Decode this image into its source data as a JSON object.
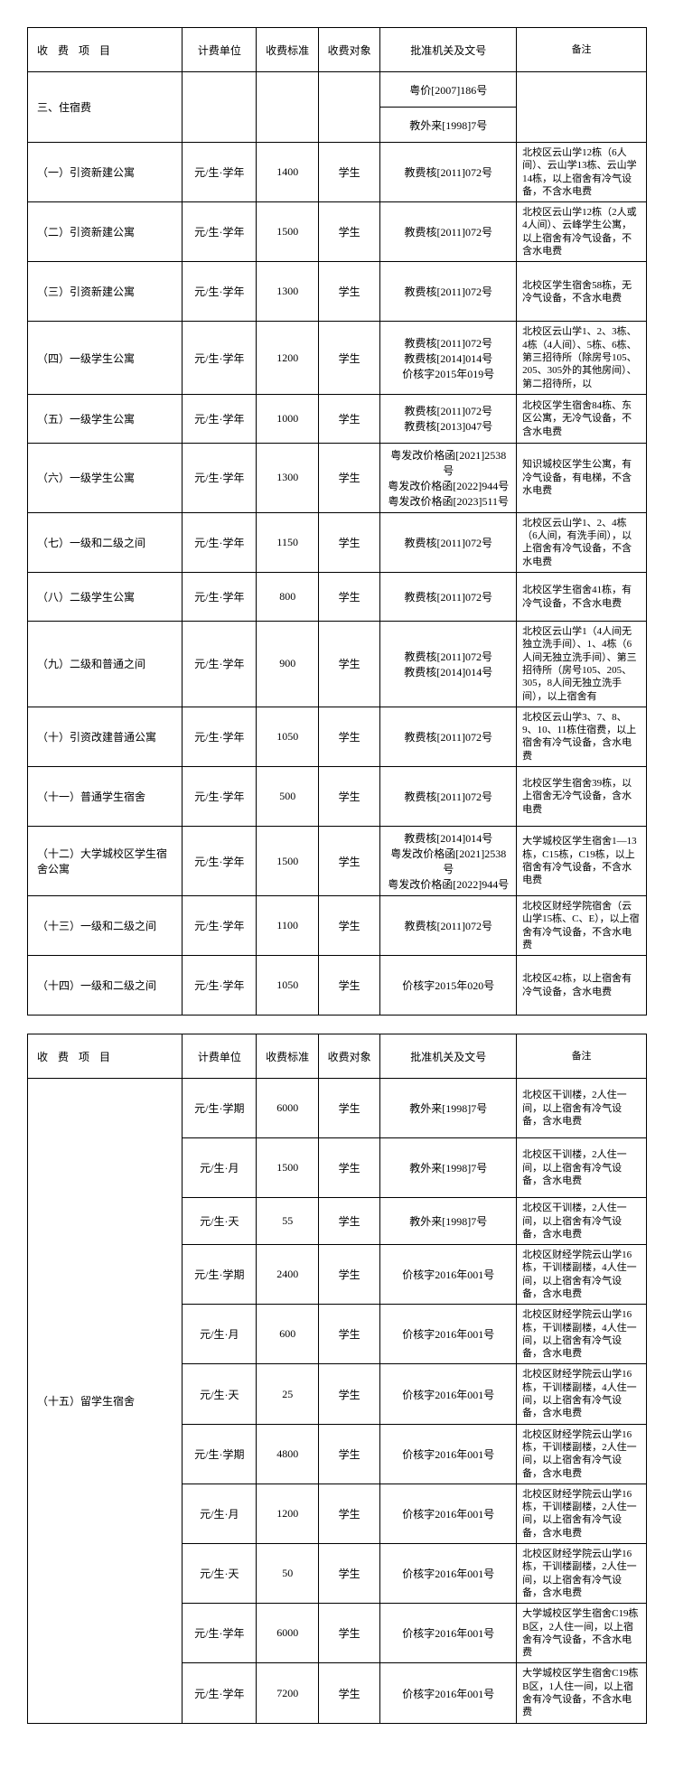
{
  "columns": {
    "fee_item": "收 费 项 目",
    "unit": "计费单位",
    "standard": "收费标准",
    "target": "收费对象",
    "approval": "批准机关及文号",
    "remark": "备注"
  },
  "section_title": "三、住宿费",
  "section_approvals": [
    "粤价[2007]186号",
    "教外来[1998]7号"
  ],
  "rows1": [
    {
      "item": "（一）引资新建公寓",
      "unit": "元/生·学年",
      "std": "1400",
      "target": "学生",
      "approval": "教费核[2011]072号",
      "remark": "北校区云山学12栋（6人间）、云山学13栋、云山学14栋，以上宿舍有冷气设备，不含水电费",
      "h": "h-tall"
    },
    {
      "item": "（二）引资新建公寓",
      "unit": "元/生·学年",
      "std": "1500",
      "target": "学生",
      "approval": "教费核[2011]072号",
      "remark": "北校区云山学12栋（2人或4人间）、云峰学生公寓，以上宿舍有冷气设备，不含水电费",
      "h": "h-tall"
    },
    {
      "item": "（三）引资新建公寓",
      "unit": "元/生·学年",
      "std": "1300",
      "target": "学生",
      "approval": "教费核[2011]072号",
      "remark": "北校区学生宿舍58栋，无冷气设备，不含水电费",
      "h": "h-tall"
    },
    {
      "item": "（四）一级学生公寓",
      "unit": "元/生·学年",
      "std": "1200",
      "target": "学生",
      "approval": "教费核[2011]072号\n教费核[2014]014号\n价核字2015年019号",
      "remark": "北校区云山学1、2、3栋、4栋（4人间）、5栋、6栋、第三招待所（除房号105、205、305外的其他房间）、第二招待所，以",
      "h": "h-tall"
    },
    {
      "item": "（五）一级学生公寓",
      "unit": "元/生·学年",
      "std": "1000",
      "target": "学生",
      "approval": "教费核[2011]072号\n教费核[2013]047号",
      "remark": "北校区学生宿舍84栋、东区公寓，无冷气设备，不含水电费",
      "h": "h-mid"
    },
    {
      "item": "（六）一级学生公寓",
      "unit": "元/生·学年",
      "std": "1300",
      "target": "学生",
      "approval": "粤发改价格函[2021]2538号\n粤发改价格函[2022]944号\n粤发改价格函[2023]511号",
      "remark": "知识城校区学生公寓，有冷气设备，有电梯，不含水电费",
      "h": "h-mid"
    },
    {
      "item": "（七）一级和二级之间",
      "unit": "元/生·学年",
      "std": "1150",
      "target": "学生",
      "approval": "教费核[2011]072号",
      "remark": "北校区云山学1、2、4栋（6人间，有洗手间），以上宿舍有冷气设备，不含水电费",
      "h": "h-mid"
    },
    {
      "item": "（八）二级学生公寓",
      "unit": "元/生·学年",
      "std": "800",
      "target": "学生",
      "approval": "教费核[2011]072号",
      "remark": "北校区学生宿舍41栋，有冷气设备，不含水电费",
      "h": "h-mid"
    },
    {
      "item": "（九）二级和普通之间",
      "unit": "元/生·学年",
      "std": "900",
      "target": "学生",
      "approval": "教费核[2011]072号\n教费核[2014]014号",
      "remark": "北校区云山学1（4人间无独立洗手间）、1、4栋（6人间无独立洗手间）、第三招待所（房号105、205、305，8人间无独立洗手间），以上宿舍有",
      "h": "h-tall"
    },
    {
      "item": "（十）引资改建普通公寓",
      "unit": "元/生·学年",
      "std": "1050",
      "target": "学生",
      "approval": "教费核[2011]072号",
      "remark": "北校区云山学3、7、8、9、10、11栋住宿费，以上宿舍有冷气设备，含水电费",
      "h": "h-tall"
    },
    {
      "item": "（十一）普通学生宿舍",
      "unit": "元/生·学年",
      "std": "500",
      "target": "学生",
      "approval": "教费核[2011]072号",
      "remark": "北校区学生宿舍39栋，以上宿舍无冷气设备，含水电费",
      "h": "h-tall"
    },
    {
      "item": "（十二）大学城校区学生宿舍公寓",
      "unit": "元/生·学年",
      "std": "1500",
      "target": "学生",
      "approval": "教费核[2014]014号\n粤发改价格函[2021]2538号\n粤发改价格函[2022]944号",
      "remark": "大学城校区学生宿舍1—13栋，C15栋，C19栋，以上宿舍有冷气设备，不含水电费",
      "h": "h-tall"
    },
    {
      "item": "（十三）一级和二级之间",
      "unit": "元/生·学年",
      "std": "1100",
      "target": "学生",
      "approval": "教费核[2011]072号",
      "remark": "北校区财经学院宿舍（云山学15栋、C、E），以上宿舍有冷气设备，不含水电费",
      "h": "h-tall"
    },
    {
      "item": "（十四）一级和二级之间",
      "unit": "元/生·学年",
      "std": "1050",
      "target": "学生",
      "approval": "价核字2015年020号",
      "remark": "北校区42栋，以上宿舍有冷气设备，含水电费",
      "h": "h-tall"
    }
  ],
  "group15_label": "（十五）留学生宿舍",
  "rows2": [
    {
      "unit": "元/生·学期",
      "std": "6000",
      "target": "学生",
      "approval": "教外来[1998]7号",
      "remark": "北校区干训楼，2人住一间，以上宿舍有冷气设备，含水电费",
      "h": "h-tall"
    },
    {
      "unit": "元/生·月",
      "std": "1500",
      "target": "学生",
      "approval": "教外来[1998]7号",
      "remark": "北校区干训楼，2人住一间，以上宿舍有冷气设备，含水电费",
      "h": "h-tall"
    },
    {
      "unit": "元/生·天",
      "std": "55",
      "target": "学生",
      "approval": "教外来[1998]7号",
      "remark": "北校区干训楼，2人住一间，以上宿舍有冷气设备，含水电费",
      "h": "h-short"
    },
    {
      "unit": "元/生·学期",
      "std": "2400",
      "target": "学生",
      "approval": "价核字2016年001号",
      "remark": "北校区财经学院云山学16栋，干训楼副楼，4人住一间，以上宿舍有冷气设备，含水电费",
      "h": "h-mid"
    },
    {
      "unit": "元/生·月",
      "std": "600",
      "target": "学生",
      "approval": "价核字2016年001号",
      "remark": "北校区财经学院云山学16栋，干训楼副楼，4人住一间，以上宿舍有冷气设备，含水电费",
      "h": "h-mid"
    },
    {
      "unit": "元/生·天",
      "std": "25",
      "target": "学生",
      "approval": "价核字2016年001号",
      "remark": "北校区财经学院云山学16栋，干训楼副楼，4人住一间，以上宿舍有冷气设备，含水电费",
      "h": "h-mid"
    },
    {
      "unit": "元/生·学期",
      "std": "4800",
      "target": "学生",
      "approval": "价核字2016年001号",
      "remark": "北校区财经学院云山学16栋，干训楼副楼，2人住一间，以上宿舍有冷气设备，含水电费",
      "h": "h-mid"
    },
    {
      "unit": "元/生·月",
      "std": "1200",
      "target": "学生",
      "approval": "价核字2016年001号",
      "remark": "北校区财经学院云山学16栋，干训楼副楼，2人住一间，以上宿舍有冷气设备，含水电费",
      "h": "h-mid"
    },
    {
      "unit": "元/生·天",
      "std": "50",
      "target": "学生",
      "approval": "价核字2016年001号",
      "remark": "北校区财经学院云山学16栋，干训楼副楼，2人住一间，以上宿舍有冷气设备，含水电费",
      "h": "h-mid"
    },
    {
      "unit": "元/生·学年",
      "std": "6000",
      "target": "学生",
      "approval": "价核字2016年001号",
      "remark": "大学城校区学生宿舍C19栋B区，2人住一间，以上宿舍有冷气设备，不含水电费",
      "h": "h-mid"
    },
    {
      "unit": "元/生·学年",
      "std": "7200",
      "target": "学生",
      "approval": "价核字2016年001号",
      "remark": "大学城校区学生宿舍C19栋B区，1人住一间，以上宿舍有冷气设备，不含水电费",
      "h": "h-mid"
    }
  ]
}
